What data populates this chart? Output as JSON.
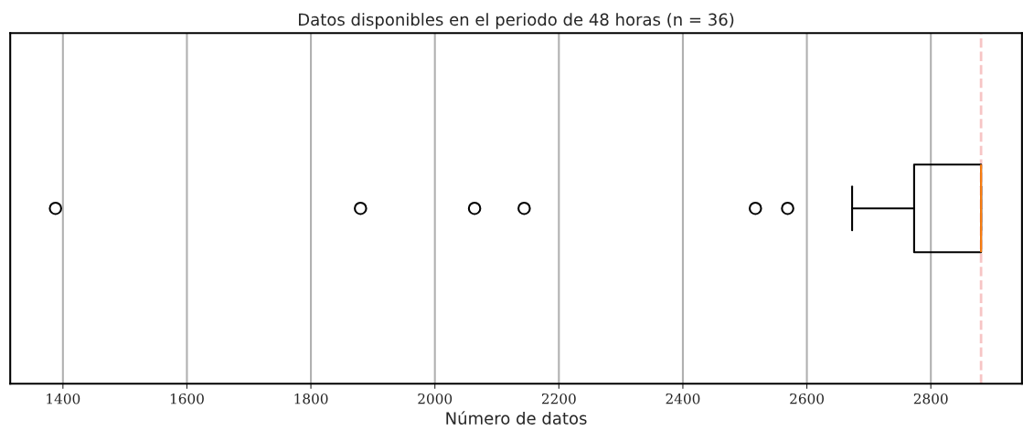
{
  "chart_data": {
    "type": "box",
    "title": "Datos disponibles en el periodo de 48 horas (n = 36)",
    "xlabel": "Número de datos",
    "orientation": "horizontal",
    "categories": [
      null
    ],
    "boxes": [
      {
        "low": 2673,
        "q1": 2773,
        "median": 2881,
        "q3": 2881,
        "high": 2881,
        "outliers": [
          1388,
          1880,
          2064,
          2144,
          2517,
          2569
        ]
      }
    ],
    "xlim": [
      1315,
      2947
    ],
    "xticks": [
      1400,
      1600,
      1800,
      2000,
      2200,
      2400,
      2600,
      2800
    ],
    "ref_lines": [
      {
        "axis": "x",
        "value": 2881,
        "color": "#f7c5c5",
        "line_style": "dashed"
      }
    ],
    "grid": "x",
    "tick_labels": "x"
  }
}
